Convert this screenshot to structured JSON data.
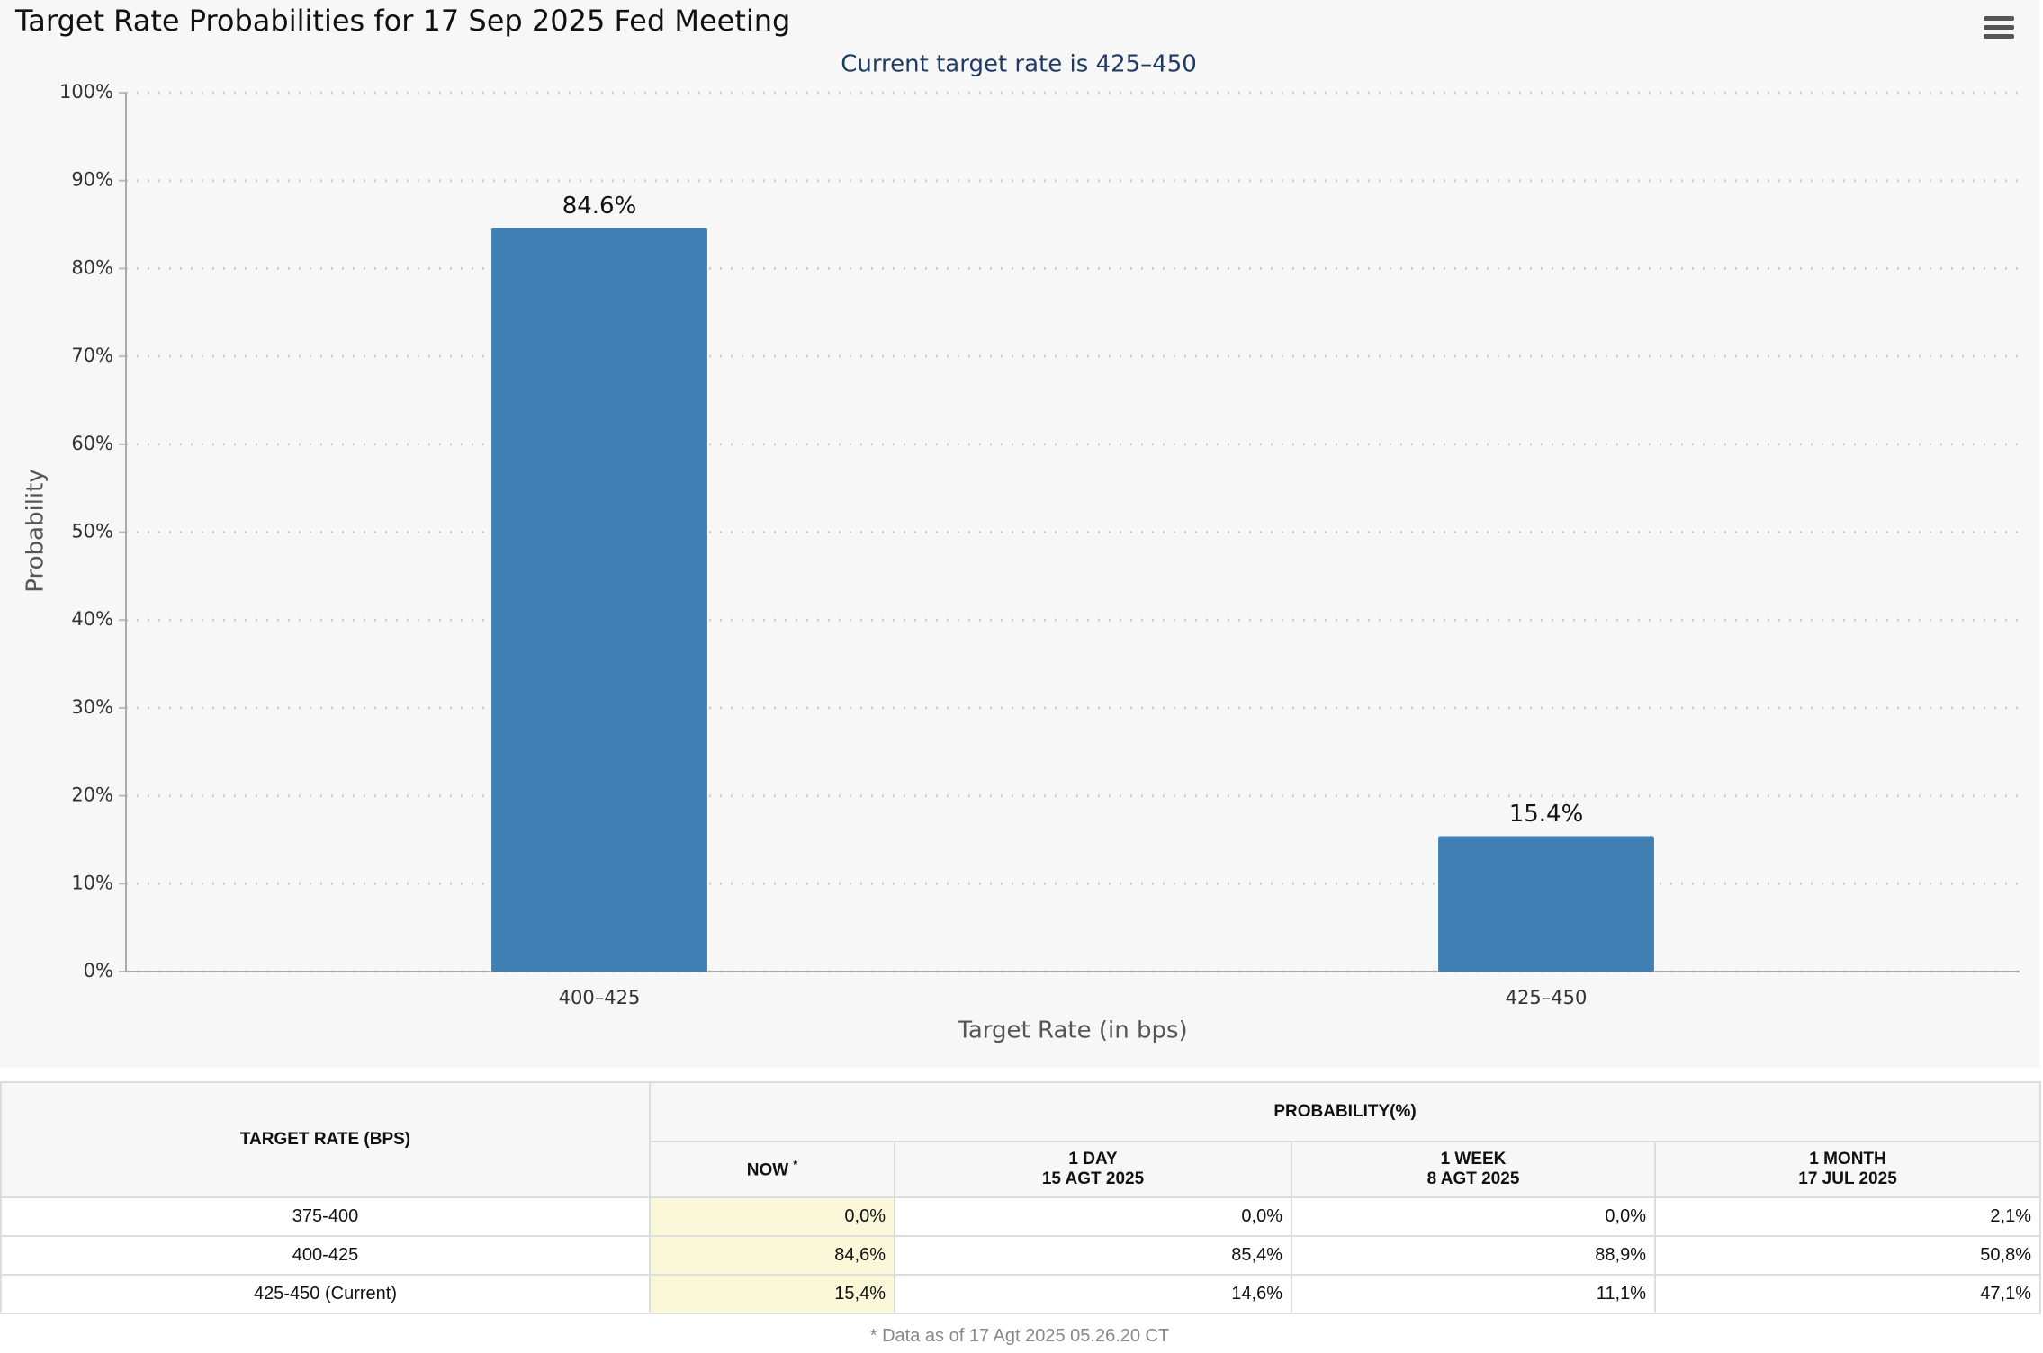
{
  "chart_data": {
    "type": "bar",
    "title": "Target Rate Probabilities for 17 Sep 2025 Fed Meeting",
    "subtitle": "Current target rate is 425–450",
    "x_label": "Target Rate (in bps)",
    "y_label": "Probability",
    "categories": [
      "400–425",
      "425–450"
    ],
    "values": [
      84.6,
      15.4
    ],
    "value_labels": [
      "84.6%",
      "15.4%"
    ],
    "color": "#3f7fb3",
    "ylim": [
      0,
      100
    ],
    "yticks": [
      {
        "value": 0,
        "label": "0%"
      },
      {
        "value": 10,
        "label": "10%"
      },
      {
        "value": 20,
        "label": "20%"
      },
      {
        "value": 30,
        "label": "30%"
      },
      {
        "value": 40,
        "label": "40%"
      },
      {
        "value": 50,
        "label": "50%"
      },
      {
        "value": 60,
        "label": "60%"
      },
      {
        "value": 70,
        "label": "70%"
      },
      {
        "value": 80,
        "label": "80%"
      },
      {
        "value": 90,
        "label": "90%"
      },
      {
        "value": 100,
        "label": "100%"
      }
    ],
    "grid": true
  },
  "table": {
    "header": {
      "target_rate": "TARGET RATE (BPS)",
      "probability": "PROBABILITY(%)"
    },
    "columns": [
      {
        "label": "NOW",
        "mark": "*"
      },
      {
        "label": "1 DAY",
        "date": "15 AGT 2025"
      },
      {
        "label": "1 WEEK",
        "date": "8 AGT 2025"
      },
      {
        "label": "1 MONTH",
        "date": "17 JUL 2025"
      }
    ],
    "rows": [
      [
        "375-400",
        "0,0%",
        "0,0%",
        "0,0%",
        "2,1%"
      ],
      [
        "400-425",
        "84,6%",
        "85,4%",
        "88,9%",
        "50,8%"
      ],
      [
        "425-450 (Current)",
        "15,4%",
        "14,6%",
        "11,1%",
        "47,1%"
      ]
    ],
    "footnote": "* Data as of 17 Agt 2025 05.26.20 CT"
  }
}
